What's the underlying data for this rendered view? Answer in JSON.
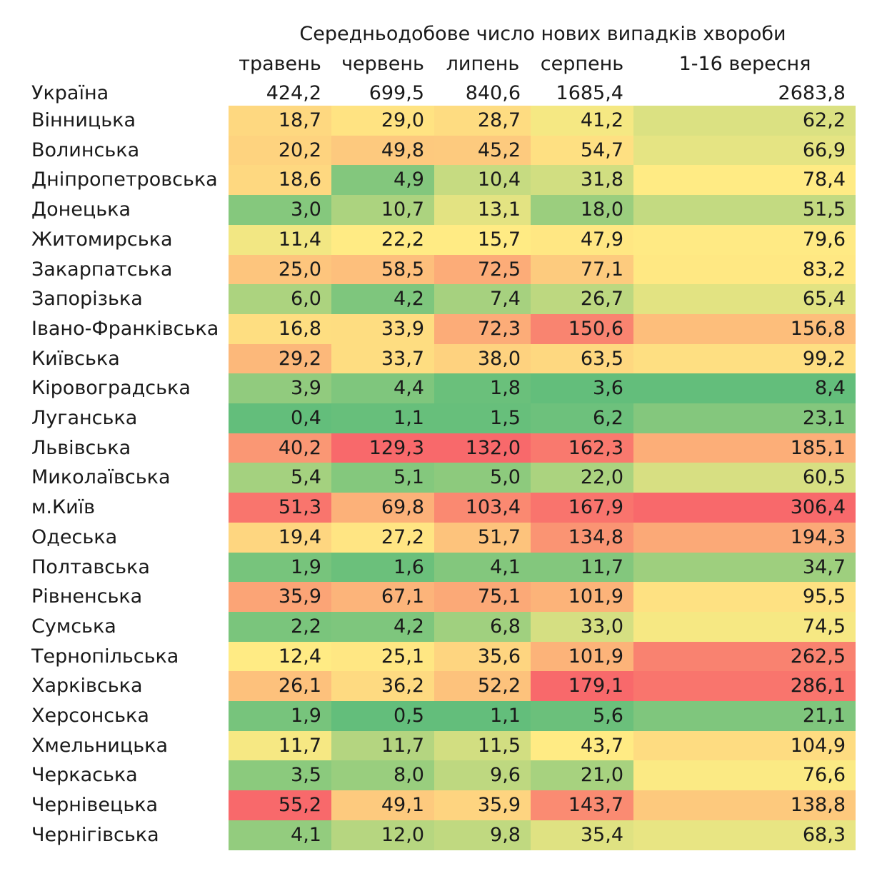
{
  "chart_data": {
    "type": "heatmap",
    "title": "Середньодобове число нових випадків хвороби",
    "columns": [
      "травень",
      "червень",
      "липень",
      "серпень",
      "1-16 вересня"
    ],
    "national": {
      "label": "Україна",
      "values": [
        "424,2",
        "699,5",
        "840,6",
        "1685,4",
        "2683,8"
      ]
    },
    "rows": [
      {
        "region": "Вінницька",
        "values": [
          18.7,
          29.0,
          28.7,
          41.2,
          62.2
        ]
      },
      {
        "region": "Волинська",
        "values": [
          20.2,
          49.8,
          45.2,
          54.7,
          66.9
        ]
      },
      {
        "region": "Дніпропетровська",
        "values": [
          18.6,
          4.9,
          10.4,
          31.8,
          78.4
        ]
      },
      {
        "region": "Донецька",
        "values": [
          3.0,
          10.7,
          13.1,
          18.0,
          51.5
        ]
      },
      {
        "region": "Житомирська",
        "values": [
          11.4,
          22.2,
          15.7,
          47.9,
          79.6
        ]
      },
      {
        "region": "Закарпатська",
        "values": [
          25.0,
          58.5,
          72.5,
          77.1,
          83.2
        ]
      },
      {
        "region": "Запорізька",
        "values": [
          6.0,
          4.2,
          7.4,
          26.7,
          65.4
        ]
      },
      {
        "region": "Івано-Франківська",
        "values": [
          16.8,
          33.9,
          72.3,
          150.6,
          156.8
        ]
      },
      {
        "region": "Київська",
        "values": [
          29.2,
          33.7,
          38.0,
          63.5,
          99.2
        ]
      },
      {
        "region": "Кіровоградська",
        "values": [
          3.9,
          4.4,
          1.8,
          3.6,
          8.4
        ]
      },
      {
        "region": "Луганська",
        "values": [
          0.4,
          1.1,
          1.5,
          6.2,
          23.1
        ]
      },
      {
        "region": "Львівська",
        "values": [
          40.2,
          129.3,
          132.0,
          162.3,
          185.1
        ]
      },
      {
        "region": "Миколаївська",
        "values": [
          5.4,
          5.1,
          5.0,
          22.0,
          60.5
        ]
      },
      {
        "region": "м.Київ",
        "values": [
          51.3,
          69.8,
          103.4,
          167.9,
          306.4
        ]
      },
      {
        "region": "Одеська",
        "values": [
          19.4,
          27.2,
          51.7,
          134.8,
          194.3
        ]
      },
      {
        "region": "Полтавська",
        "values": [
          1.9,
          1.6,
          4.1,
          11.7,
          34.7
        ]
      },
      {
        "region": "Рівненська",
        "values": [
          35.9,
          67.1,
          75.1,
          101.9,
          95.5
        ]
      },
      {
        "region": "Сумська",
        "values": [
          2.2,
          4.2,
          6.8,
          33.0,
          74.5
        ]
      },
      {
        "region": "Тернопільська",
        "values": [
          12.4,
          25.1,
          35.6,
          101.9,
          262.5
        ]
      },
      {
        "region": "Харківська",
        "values": [
          26.1,
          36.2,
          52.2,
          179.1,
          286.1
        ]
      },
      {
        "region": "Херсонська",
        "values": [
          1.9,
          0.5,
          1.1,
          5.6,
          21.1
        ]
      },
      {
        "region": "Хмельницька",
        "values": [
          11.7,
          11.7,
          11.5,
          43.7,
          104.9
        ]
      },
      {
        "region": "Черкаська",
        "values": [
          3.5,
          8.0,
          9.6,
          21.0,
          76.6
        ]
      },
      {
        "region": "Чернівецька",
        "values": [
          55.2,
          49.1,
          35.9,
          143.7,
          138.8
        ]
      },
      {
        "region": "Чернігівська",
        "values": [
          4.1,
          12.0,
          9.8,
          35.4,
          68.3
        ]
      }
    ],
    "colors": {
      "low": "#63be7b",
      "mid": "#ffeb84",
      "high": "#f8696b"
    }
  }
}
